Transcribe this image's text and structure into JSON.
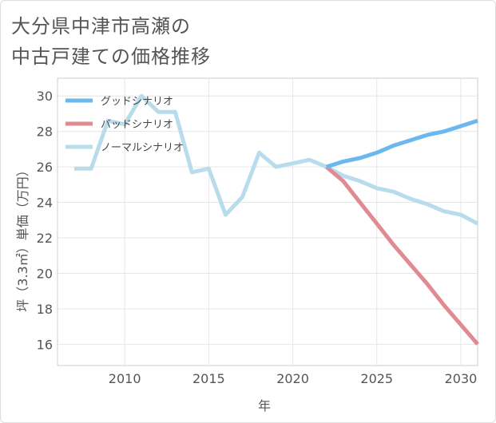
{
  "title_lines": [
    "大分県中津市高瀬の",
    "中古戸建ての価格推移"
  ],
  "chart_data": {
    "type": "line",
    "title": "大分県中津市高瀬の中古戸建ての価格推移",
    "xlabel": "年",
    "ylabel": "坪（3.3㎡）単価（万円）",
    "xlim": [
      2006,
      2031
    ],
    "ylim": [
      14.8,
      31
    ],
    "xticks": [
      2010,
      2015,
      2020,
      2025,
      2030
    ],
    "yticks": [
      16,
      18,
      20,
      22,
      24,
      26,
      28,
      30
    ],
    "grid": true,
    "legend_position": "top-left",
    "series": [
      {
        "name": "グッドシナリオ",
        "color": "#6bb8ee",
        "x": [
          2022,
          2023,
          2024,
          2025,
          2026,
          2027,
          2028,
          2029,
          2030,
          2031
        ],
        "values": [
          26.0,
          26.3,
          26.5,
          26.8,
          27.2,
          27.5,
          27.8,
          28.0,
          28.3,
          28.6
        ]
      },
      {
        "name": "バッドシナリオ",
        "color": "#e08a92",
        "x": [
          2022,
          2023,
          2024,
          2025,
          2026,
          2027,
          2028,
          2029,
          2030,
          2031
        ],
        "values": [
          26.0,
          25.2,
          24.0,
          22.8,
          21.6,
          20.5,
          19.4,
          18.2,
          17.1,
          16.0
        ]
      },
      {
        "name": "ノーマルシナリオ",
        "color": "#b8dcec",
        "x": [
          2007,
          2008,
          2009,
          2010,
          2011,
          2012,
          2013,
          2014,
          2015,
          2016,
          2017,
          2018,
          2019,
          2020,
          2021,
          2022,
          2023,
          2024,
          2025,
          2026,
          2027,
          2028,
          2029,
          2030,
          2031
        ],
        "values": [
          25.9,
          25.9,
          28.6,
          28.4,
          30.0,
          29.1,
          29.1,
          25.7,
          25.9,
          23.3,
          24.3,
          26.8,
          26.0,
          26.2,
          26.4,
          26.0,
          25.5,
          25.2,
          24.8,
          24.6,
          24.2,
          23.9,
          23.5,
          23.3,
          22.8
        ]
      }
    ]
  }
}
